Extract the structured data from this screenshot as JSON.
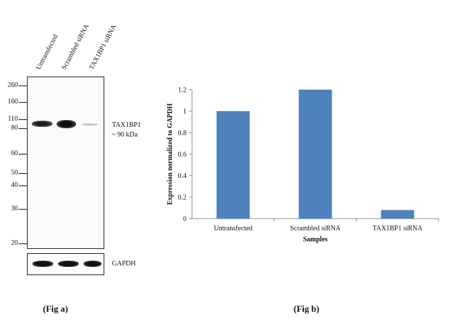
{
  "fig_a": {
    "caption": "(Fig a)",
    "lanes": [
      "Untransfected",
      "Scrambled siRNA",
      "TAX1BP1 siRNA"
    ],
    "mw_markers": [
      "260",
      "160",
      "110",
      "80",
      "60",
      "50",
      "40",
      "30",
      "20"
    ],
    "target_label": "TAX1BP1",
    "target_size": "~ 90 kDa",
    "loading_label": "GAPDH"
  },
  "fig_b": {
    "caption": "(Fig b)"
  },
  "chart_data": {
    "type": "bar",
    "categories": [
      "Untransfected",
      "Scrambled siRNA",
      "TAX1BP1  siRNA"
    ],
    "values": [
      1.0,
      1.2,
      0.08
    ],
    "xlabel": "Samples",
    "ylabel": "Expression normalized to GAPDH",
    "ylim": [
      0,
      1.2
    ],
    "yticks": [
      "0",
      "0.2",
      "0.4",
      "0.6",
      "0.8",
      "1",
      "1.2"
    ],
    "bar_color": "#4f81bd",
    "grid": false
  }
}
